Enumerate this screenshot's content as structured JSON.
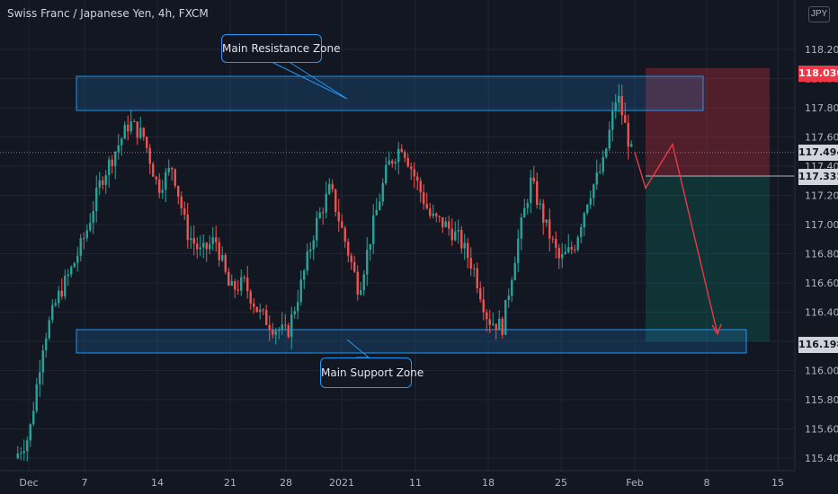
{
  "header": {
    "title": "Swiss Franc / Japanese Yen, 4h, FXCM",
    "currency": "JPY",
    "top_tick_fragment": "0"
  },
  "annotations": {
    "resistance_label": "Main Resistance Zone",
    "support_label": "Main Support Zone"
  },
  "price_badges": {
    "stop": "118.030",
    "current": "117.494",
    "entry": "117.332",
    "target": "116.198",
    "hidden_tick": "117.400"
  },
  "colors": {
    "background": "#131722",
    "grid": "#1e2433",
    "text": "#b2b5be",
    "up_candle": "#26a69a",
    "down_candle": "#ef5350",
    "zone_stroke": "#2196f3",
    "stop_badge": "#f23645",
    "current_badge": "#363a45",
    "entry_badge": "#363a45",
    "target_badge": "#363a45",
    "projection_arrow": "#f23645"
  },
  "chart_data": {
    "type": "candlestick",
    "symbol": "Swiss Franc / Japanese Yen",
    "interval": "4h",
    "source": "FXCM",
    "y_ticks": [
      118.2,
      118.0,
      117.8,
      117.6,
      117.4,
      117.2,
      117.0,
      116.8,
      116.6,
      116.4,
      116.2,
      116.0,
      115.8,
      115.6,
      115.4
    ],
    "y_tick_labels": [
      "118.200",
      "118.000",
      "117.800",
      "117.600",
      "117.400",
      "117.200",
      "117.000",
      "116.800",
      "116.600",
      "116.400",
      "116.200",
      "116.000",
      "115.800",
      "115.600",
      "115.400"
    ],
    "ylim": [
      115.4,
      118.3
    ],
    "x_ticks": [
      "Dec",
      "7",
      "14",
      "21",
      "28",
      "2021",
      "11",
      "18",
      "25",
      "Feb",
      "8",
      "15"
    ],
    "price_path": [
      [
        0,
        115.4
      ],
      [
        1,
        115.55
      ],
      [
        2,
        116.2
      ],
      [
        3,
        116.5
      ],
      [
        4,
        116.7
      ],
      [
        5,
        116.95
      ],
      [
        6,
        117.3
      ],
      [
        7,
        117.5
      ],
      [
        8,
        117.7
      ],
      [
        9,
        117.6
      ],
      [
        10,
        117.25
      ],
      [
        11,
        117.4
      ],
      [
        12,
        116.95
      ],
      [
        13,
        116.8
      ],
      [
        14,
        116.9
      ],
      [
        15,
        116.55
      ],
      [
        16,
        116.6
      ],
      [
        17,
        116.4
      ],
      [
        18,
        116.3
      ],
      [
        19,
        116.25
      ],
      [
        20,
        116.6
      ],
      [
        21,
        117.0
      ],
      [
        22,
        117.25
      ],
      [
        23,
        116.9
      ],
      [
        24,
        116.55
      ],
      [
        25,
        117.0
      ],
      [
        26,
        117.4
      ],
      [
        27,
        117.55
      ],
      [
        28,
        117.3
      ],
      [
        29,
        117.05
      ],
      [
        30,
        117.0
      ],
      [
        31,
        116.9
      ],
      [
        32,
        116.7
      ],
      [
        33,
        116.35
      ],
      [
        34,
        116.3
      ],
      [
        35,
        116.85
      ],
      [
        36,
        117.3
      ],
      [
        37,
        117.0
      ],
      [
        38,
        116.75
      ],
      [
        39,
        116.85
      ],
      [
        40,
        117.2
      ],
      [
        41,
        117.4
      ],
      [
        42,
        117.9
      ],
      [
        43,
        117.494
      ]
    ],
    "zones": [
      {
        "label": "Main Resistance Zone",
        "from": 117.77,
        "to": 117.97
      },
      {
        "label": "Main Support Zone",
        "from": 116.15,
        "to": 116.28
      }
    ],
    "short_position": {
      "entry": 117.332,
      "stop": 118.03,
      "target": 116.198
    },
    "projection_path": [
      117.494,
      117.25,
      117.55,
      116.25
    ],
    "last_price": 117.494
  }
}
